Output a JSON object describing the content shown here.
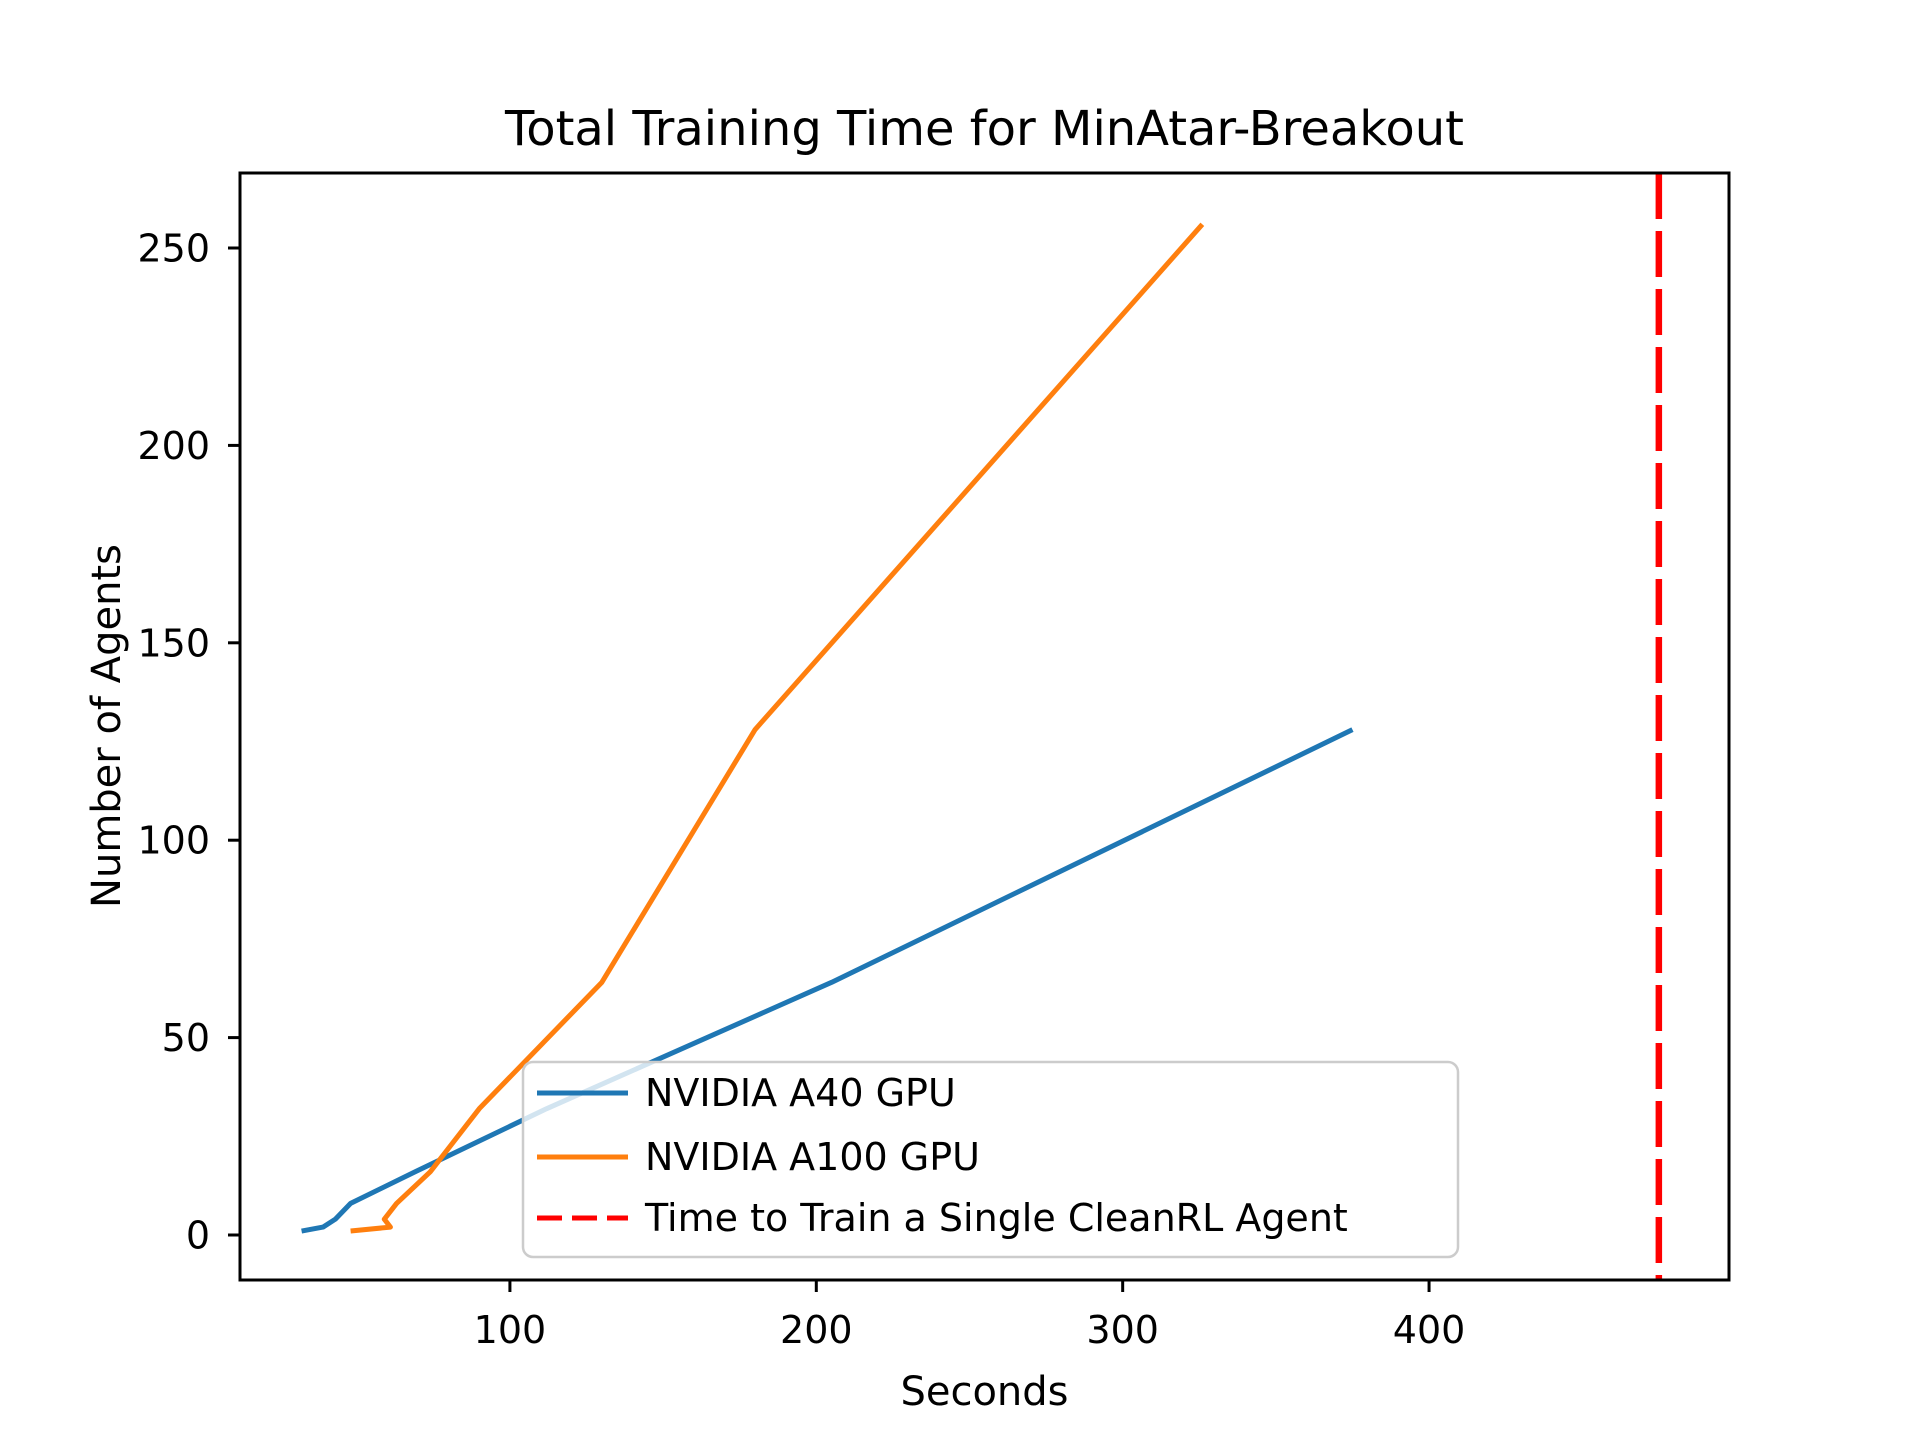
{
  "chart_data": {
    "type": "line",
    "title": "Total Training Time for MinAtar-Breakout",
    "xlabel": "Seconds",
    "ylabel": "Number of Agents",
    "xlim": [
      11.9,
      497.9
    ],
    "ylim": [
      -11.4,
      269.0
    ],
    "xticks": [
      100,
      200,
      300,
      400
    ],
    "yticks": [
      0,
      50,
      100,
      150,
      200,
      250
    ],
    "grid": false,
    "background_color": "#ffffff",
    "axis_color": "#000000",
    "series": [
      {
        "name": "NVIDIA A40 GPU",
        "color": "#1f77b4",
        "line_style": "solid",
        "points": [
          [
            32,
            1
          ],
          [
            39,
            2
          ],
          [
            43,
            4
          ],
          [
            48,
            8
          ],
          [
            69,
            16
          ],
          [
            112,
            32
          ],
          [
            205,
            64
          ],
          [
            375,
            128
          ]
        ]
      },
      {
        "name": "NVIDIA A100 GPU",
        "color": "#ff7f0e",
        "line_style": "solid",
        "points": [
          [
            48,
            1
          ],
          [
            61,
            2
          ],
          [
            59,
            4
          ],
          [
            63,
            8
          ],
          [
            74,
            16
          ],
          [
            90,
            32
          ],
          [
            130,
            64
          ],
          [
            180,
            128
          ],
          [
            326,
            256
          ]
        ]
      }
    ],
    "vlines": [
      {
        "name": "Time to Train a Single CleanRL Agent",
        "color": "#ff0000",
        "x": 475,
        "line_style": "dashed"
      }
    ],
    "legend": {
      "position": "lower-left-inside",
      "border_color": "#cccccc",
      "background": "rgba(255,255,255,0.8)",
      "entries": [
        "NVIDIA A40 GPU",
        "NVIDIA A100 GPU",
        "Time to Train a Single CleanRL Agent"
      ]
    }
  }
}
